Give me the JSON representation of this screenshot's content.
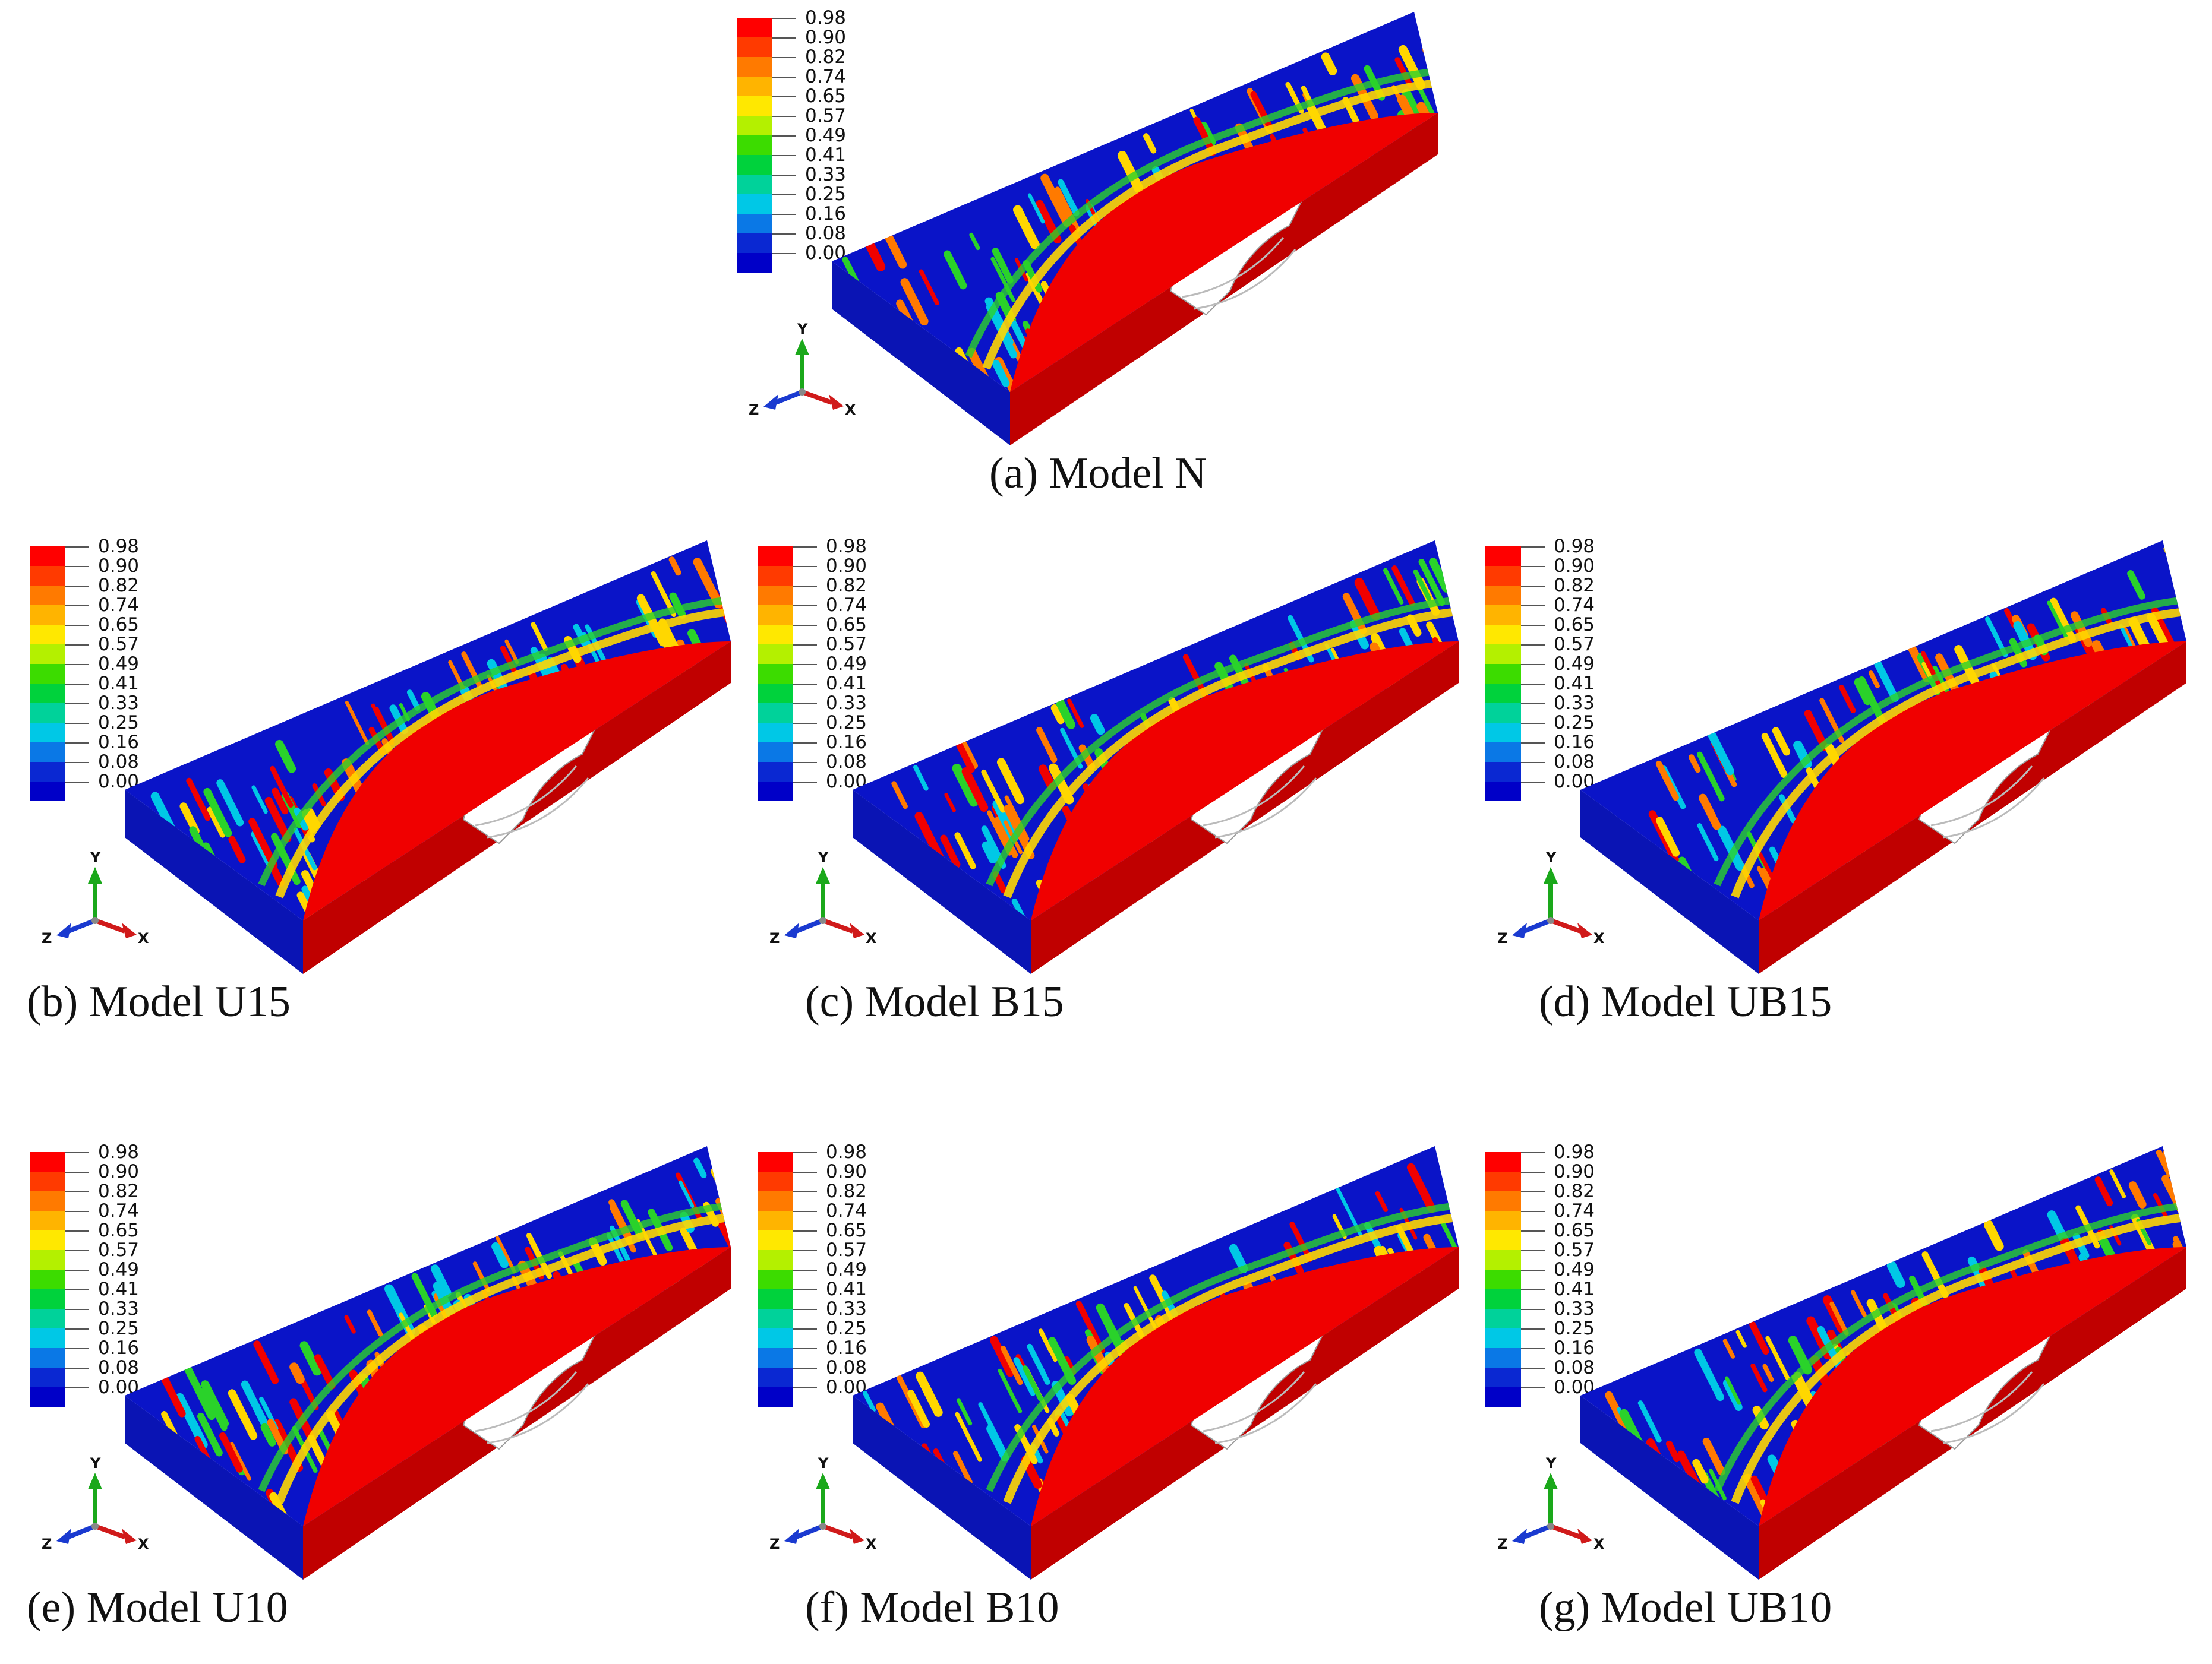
{
  "figure": {
    "panels": [
      {
        "id": "a",
        "caption": "(a) Model N"
      },
      {
        "id": "b",
        "caption": "(b) Model U15"
      },
      {
        "id": "c",
        "caption": "(c) Model B15"
      },
      {
        "id": "d",
        "caption": "(d) Model UB15"
      },
      {
        "id": "e",
        "caption": "(e) Model U10"
      },
      {
        "id": "f",
        "caption": "(f) Model B10"
      },
      {
        "id": "g",
        "caption": "(g) Model UB10"
      }
    ],
    "legend": {
      "values": [
        "0.98",
        "0.90",
        "0.82",
        "0.74",
        "0.65",
        "0.57",
        "0.49",
        "0.41",
        "0.33",
        "0.25",
        "0.16",
        "0.08",
        "0.00"
      ],
      "colors": [
        "#ff0000",
        "#ff3a00",
        "#ff7a00",
        "#ffb400",
        "#ffe800",
        "#b4f000",
        "#3cdc00",
        "#00d23c",
        "#00d29a",
        "#00c8e6",
        "#0a78e6",
        "#0a28d2",
        "#0000c8"
      ]
    },
    "triad": {
      "y": "Y",
      "x": "X",
      "z": "Z"
    },
    "colors": {
      "red": "#f00000",
      "blue": "#0a14c8",
      "dark_red": "#c80000",
      "cyan": "#00c8e6",
      "green": "#2ad22a",
      "yellow": "#ffd700"
    }
  }
}
